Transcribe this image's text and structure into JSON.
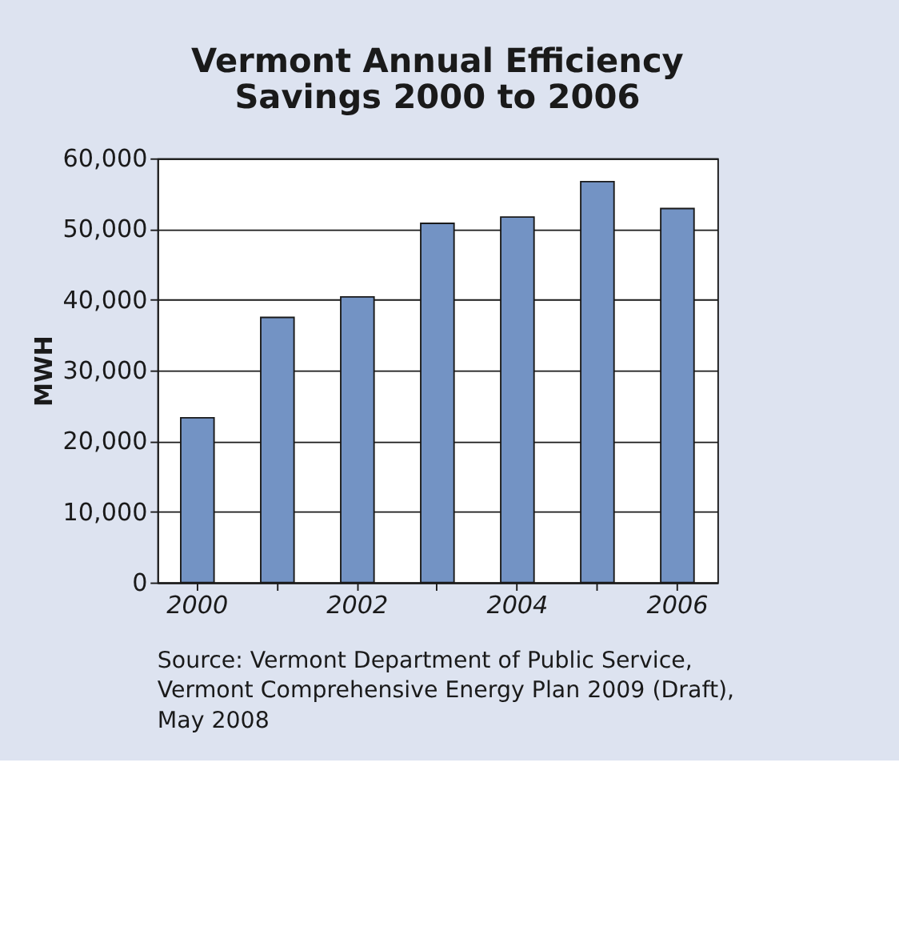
{
  "chart_data": {
    "type": "bar",
    "title": "Vermont Annual Efficiency Savings 2000 to 2006",
    "ylabel": "MWH",
    "categories": [
      "2000",
      null,
      "2002",
      null,
      "2004",
      null,
      "2006"
    ],
    "series": [
      {
        "color": "#7393c4",
        "values": [
          23300,
          37500,
          40400,
          50800,
          51700,
          56700,
          52900
        ]
      }
    ],
    "ylim": [
      0,
      60000
    ],
    "yticks": [
      0,
      {
        "value": 10000,
        "label": "10,000"
      },
      {
        "value": 20000,
        "label": "20,000"
      },
      {
        "value": 30000,
        "label": "30,000"
      },
      {
        "value": 40000,
        "label": "40,000"
      },
      {
        "value": 50000,
        "label": "50,000"
      },
      {
        "value": 60000,
        "label": "60,000"
      }
    ],
    "grid": "y",
    "annotations": [
      "Source: Vermont Department of Public Service, Vermont Comprehensive Energy Plan 2009 (Draft), May 2008"
    ]
  }
}
